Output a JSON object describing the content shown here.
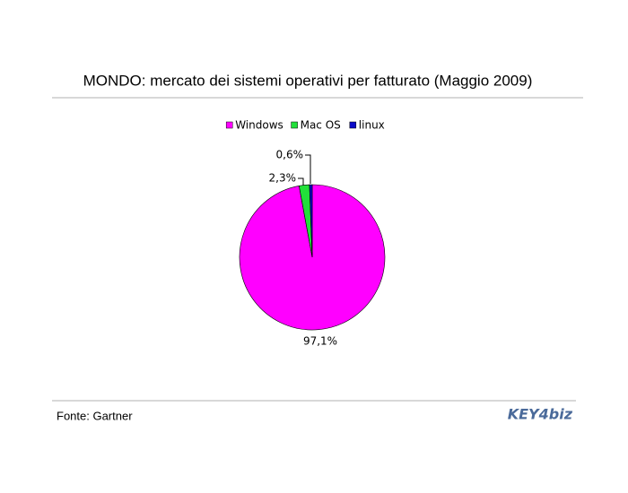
{
  "chart_data": {
    "type": "pie",
    "title": "MONDO: mercato dei sistemi operativi per fatturato (Maggio 2009)",
    "categories": [
      "Windows",
      "Mac OS",
      "linux"
    ],
    "values": [
      97.1,
      2.3,
      0.6
    ],
    "value_labels": [
      "97,1%",
      "2,3%",
      "0,6%"
    ],
    "colors": [
      "#ff00ff",
      "#22e03a",
      "#0a0ac8"
    ],
    "source": "Fonte: Gartner",
    "logo": "KEY4biz"
  }
}
